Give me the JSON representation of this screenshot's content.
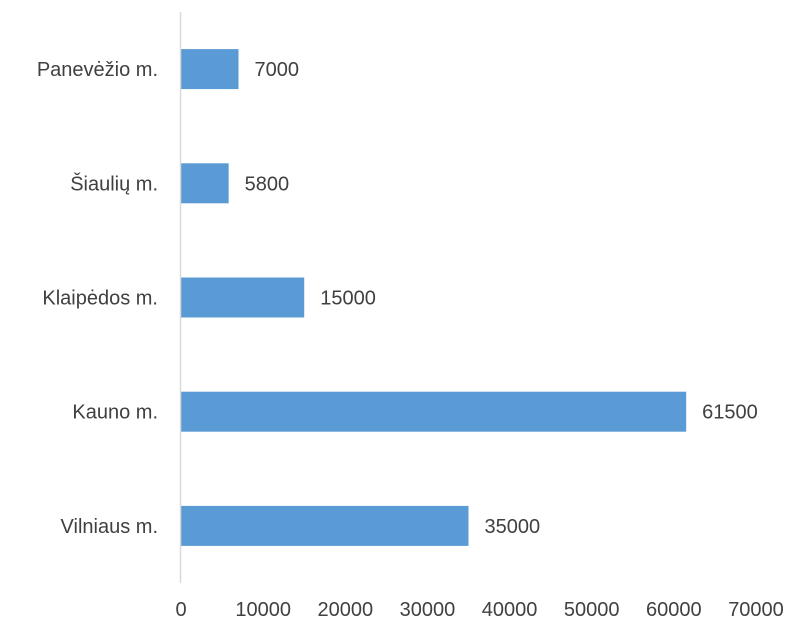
{
  "chart_data": {
    "type": "bar",
    "orientation": "horizontal",
    "categories": [
      "Panevėžio m.",
      "Šiaulių m.",
      "Klaipėdos m.",
      "Kauno m.",
      "Vilniaus m."
    ],
    "values": [
      7000,
      5800,
      15000,
      61500,
      35000
    ],
    "data_labels": [
      "7000",
      "5800",
      "15000",
      "61500",
      "35000"
    ],
    "xlim": [
      0,
      70000
    ],
    "x_ticks": [
      0,
      10000,
      20000,
      30000,
      40000,
      50000,
      60000,
      70000
    ],
    "x_tick_labels": [
      "0",
      "10000",
      "20000",
      "30000",
      "40000",
      "50000",
      "60000",
      "70000"
    ],
    "bar_color": "#5B9BD5",
    "axis_color": "#D9D9D9",
    "text_color": "#404040",
    "grid": false,
    "legend": "none"
  }
}
